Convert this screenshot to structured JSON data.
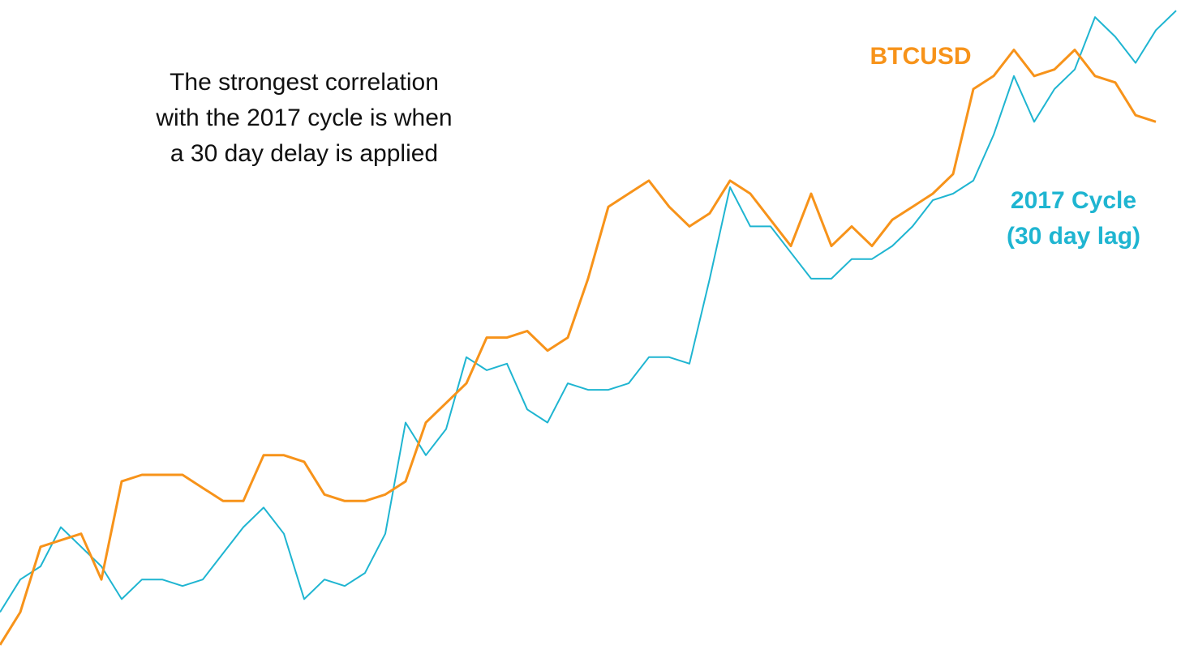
{
  "chart_data": {
    "type": "line",
    "annotation": [
      "The strongest correlation",
      "with the 2017 cycle is when",
      "a 30 day delay is applied"
    ],
    "ylim": [
      0,
      100
    ],
    "series": [
      {
        "name": "BTCUSD",
        "color": "#f7931a",
        "values": [
          2,
          7,
          17,
          18,
          19,
          12,
          27,
          28,
          28,
          28,
          26,
          24,
          24,
          31,
          31,
          30,
          25,
          24,
          24,
          25,
          27,
          36,
          39,
          42,
          49,
          49,
          50,
          47,
          49,
          58,
          69,
          71,
          73,
          69,
          66,
          68,
          73,
          71,
          67,
          63,
          71,
          63,
          66,
          63,
          67,
          69,
          71,
          74,
          87,
          89,
          93,
          89,
          90,
          93,
          89,
          88,
          83,
          82,
          null
        ]
      },
      {
        "name": "2017 Cycle (30 day lag)",
        "color": "#1fb5d1",
        "values": [
          7,
          12,
          14,
          20,
          17,
          14,
          9,
          12,
          12,
          11,
          12,
          16,
          20,
          23,
          19,
          9,
          12,
          11,
          13,
          19,
          36,
          31,
          35,
          46,
          44,
          45,
          38,
          36,
          42,
          41,
          41,
          42,
          46,
          46,
          45,
          58,
          72,
          66,
          66,
          62,
          58,
          58,
          61,
          61,
          63,
          66,
          70,
          71,
          73,
          80,
          89,
          82,
          87,
          90,
          98,
          95,
          91,
          96,
          99
        ]
      }
    ]
  }
}
